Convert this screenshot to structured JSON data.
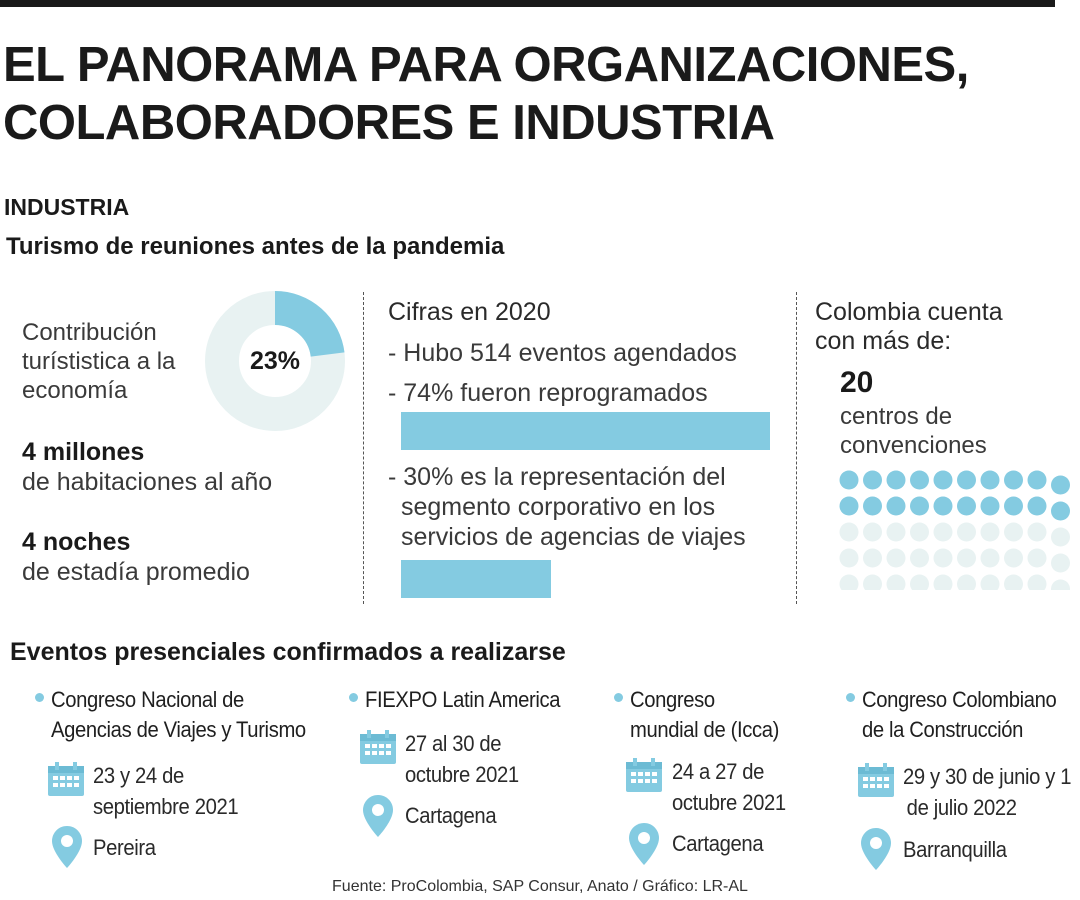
{
  "title_lines": [
    "EL PANORAMA PARA ORGANIZACIONES,",
    "COLABORADORES E INDUSTRIA"
  ],
  "section_label": "INDUSTRIA",
  "subtitle": "Turismo de reuniones antes de la pandemia",
  "left": {
    "donut_label_lines": [
      "Contribución",
      "turístistica a la",
      "economía"
    ],
    "donut_percent_text": "23%",
    "donut_value": 0.23,
    "stats": [
      {
        "big": "4 millones",
        "small": "de habitaciones al año"
      },
      {
        "big": "4 noches",
        "small": "de estadía promedio"
      }
    ]
  },
  "middle": {
    "heading": "Cifras en 2020",
    "lines": [
      "- Hubo 514 eventos agendados",
      "- 74% fueron reprogramados"
    ],
    "corporate_lines": [
      "- 30% es la representación del",
      "segmento corporativo en los",
      "servicios de agencias de viajes"
    ],
    "bar_values": [
      0.74,
      0.3
    ]
  },
  "right": {
    "heading_lines": [
      "Colombia cuenta",
      "con más de:"
    ],
    "number": "20",
    "sub_lines": [
      "centros de",
      "convenciones"
    ],
    "dots_filled": 20,
    "dots_total": 50
  },
  "events_title": "Eventos presenciales confirmados a realizarse",
  "events": [
    {
      "name_lines": [
        "Congreso Nacional de",
        "Agencias de Viajes y Turismo"
      ],
      "date_lines": [
        "23 y 24 de",
        "septiembre 2021"
      ],
      "place": "Pereira"
    },
    {
      "name_lines": [
        "FIEXPO Latin America"
      ],
      "date_lines": [
        "27 al 30 de",
        "octubre 2021"
      ],
      "place": "Cartagena"
    },
    {
      "name_lines": [
        "Congreso",
        "mundial de (Icca)"
      ],
      "date_lines": [
        "24 a 27 de",
        "octubre 2021"
      ],
      "place": "Cartagena"
    },
    {
      "name_lines": [
        "Congreso Colombiano",
        "de la Construcción"
      ],
      "date_lines": [
        "29 y 30 de junio y 1",
        "de julio 2022"
      ],
      "place": "Barranquilla"
    }
  ],
  "source": "Fuente: ProColombia, SAP Consur, Anato / Gráfico: LR-AL",
  "colors": {
    "accent": "#84cbe1",
    "light": "#e8f2f2",
    "text": "#1f1f1f"
  }
}
